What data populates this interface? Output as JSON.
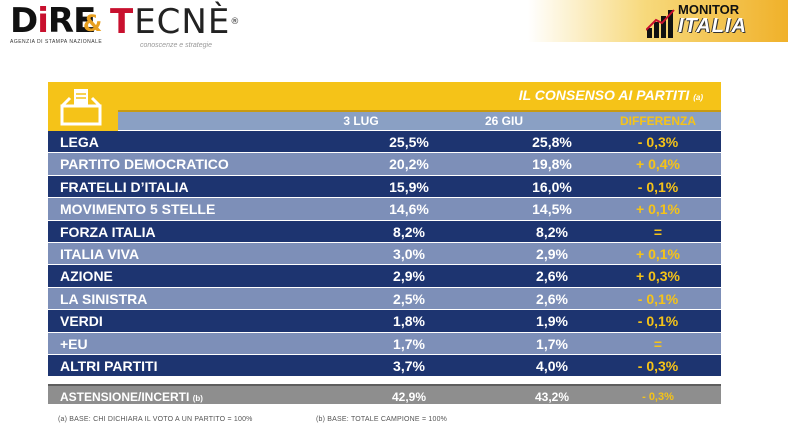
{
  "header": {
    "dire": {
      "word_cap": "D",
      "word_red_i": "i",
      "word_rest": "RE",
      "sub": "AGENZIA DI STAMPA NAZIONALE"
    },
    "amp": "&",
    "tecne": {
      "cap": "T",
      "rest": "ECNÈ",
      "reg": "®",
      "sub": "conoscenze e strategie"
    },
    "monitor": {
      "line1": "MONITOR",
      "line2": "ITALIA"
    }
  },
  "chart_data": {
    "type": "table",
    "title": "IL CONSENSO AI PARTITI",
    "title_note": "(a)",
    "columns": [
      "3 LUG",
      "26 GIU",
      "DIFFERENZA"
    ],
    "rows": [
      {
        "party": "LEGA",
        "jul3": "25,5%",
        "jun26": "25,8%",
        "diff": "- 0,3%"
      },
      {
        "party": "PARTITO DEMOCRATICO",
        "jul3": "20,2%",
        "jun26": "19,8%",
        "diff": "+ 0,4%"
      },
      {
        "party": "FRATELLI D’ITALIA",
        "jul3": "15,9%",
        "jun26": "16,0%",
        "diff": "- 0,1%"
      },
      {
        "party": "MOVIMENTO 5 STELLE",
        "jul3": "14,6%",
        "jun26": "14,5%",
        "diff": "+ 0,1%"
      },
      {
        "party": "FORZA ITALIA",
        "jul3": "8,2%",
        "jun26": "8,2%",
        "diff": "="
      },
      {
        "party": "ITALIA VIVA",
        "jul3": "3,0%",
        "jun26": "2,9%",
        "diff": "+ 0,1%"
      },
      {
        "party": "AZIONE",
        "jul3": "2,9%",
        "jun26": "2,6%",
        "diff": "+ 0,3%"
      },
      {
        "party": "LA SINISTRA",
        "jul3": "2,5%",
        "jun26": "2,6%",
        "diff": "- 0,1%"
      },
      {
        "party": "VERDI",
        "jul3": "1,8%",
        "jun26": "1,9%",
        "diff": "- 0,1%"
      },
      {
        "party": "+EU",
        "jul3": "1,7%",
        "jun26": "1,7%",
        "diff": "="
      },
      {
        "party": "ALTRI PARTITI",
        "jul3": "3,7%",
        "jun26": "4,0%",
        "diff": "- 0,3%"
      }
    ],
    "abstention": {
      "label": "ASTENSIONE/INCERTI",
      "note": "(b)",
      "jul3": "42,9%",
      "jun26": "43,2%",
      "diff": "- 0,3%"
    },
    "colors": {
      "dark_row": "#1d3470",
      "light_row": "#7d8fb8",
      "accent": "#f5c318",
      "abstention_row": "#8e8e8e"
    }
  },
  "footnotes": {
    "a": "(a)     BASE: CHI DICHIARA IL VOTO A UN PARTITO = 100%",
    "b": "(b)     BASE: TOTALE CAMPIONE = 100%"
  }
}
